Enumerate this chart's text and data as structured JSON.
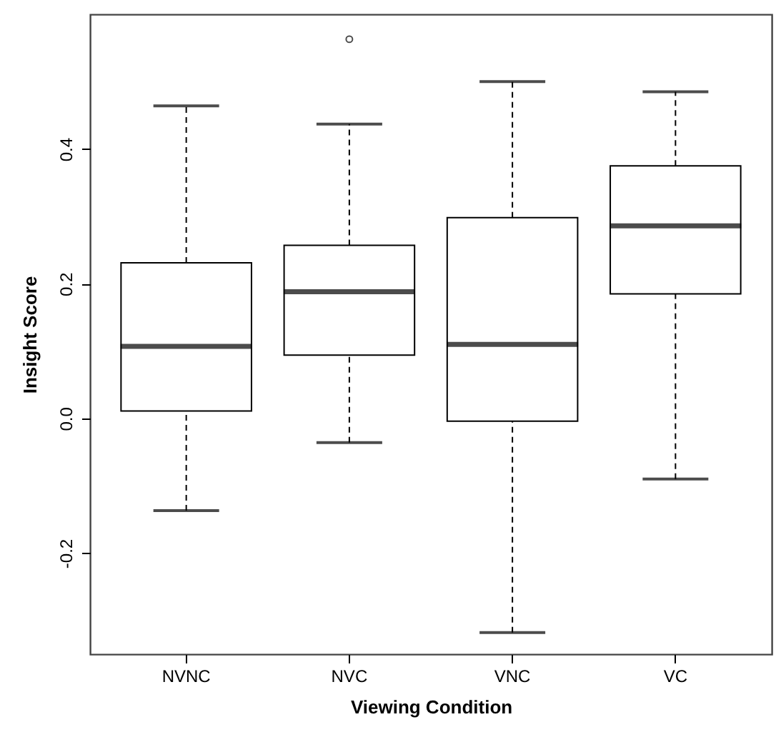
{
  "chart_data": {
    "type": "box",
    "xlabel": "Viewing Condition",
    "ylabel": "Insight Score",
    "categories": [
      "NVNC",
      "NVC",
      "VNC",
      "VC"
    ],
    "boxes": [
      {
        "low": -0.137,
        "q1": 0.011,
        "median": 0.107,
        "q3": 0.231,
        "high": 0.464
      },
      {
        "low": -0.036,
        "q1": 0.094,
        "median": 0.188,
        "q3": 0.257,
        "high": 0.437,
        "outliers": [
          0.563
        ]
      },
      {
        "low": -0.318,
        "q1": -0.004,
        "median": 0.11,
        "q3": 0.298,
        "high": 0.5
      },
      {
        "low": -0.09,
        "q1": 0.185,
        "median": 0.286,
        "q3": 0.375,
        "high": 0.485
      }
    ],
    "ylim": [
      -0.35,
      0.6
    ],
    "yticks": [
      {
        "value": -0.2,
        "label": "-0.2"
      },
      {
        "value": 0,
        "label": "0.0"
      },
      {
        "value": 0.2,
        "label": "0.2"
      },
      {
        "value": 0.4,
        "label": "0.4"
      }
    ]
  }
}
